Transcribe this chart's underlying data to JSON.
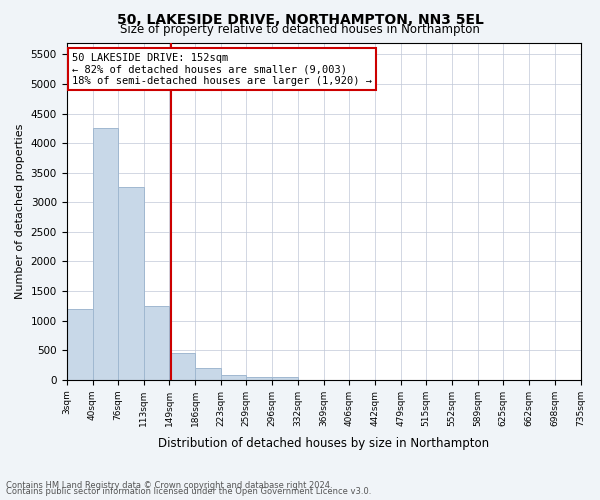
{
  "title1": "50, LAKESIDE DRIVE, NORTHAMPTON, NN3 5EL",
  "title2": "Size of property relative to detached houses in Northampton",
  "xlabel": "Distribution of detached houses by size in Northampton",
  "ylabel": "Number of detached properties",
  "bar_color": "#c8d8e8",
  "bar_edgecolor": "#a0b8d0",
  "vline_x": 152,
  "vline_color": "#cc0000",
  "annotation_title": "50 LAKESIDE DRIVE: 152sqm",
  "annotation_line1": "← 82% of detached houses are smaller (9,003)",
  "annotation_line2": "18% of semi-detached houses are larger (1,920) →",
  "annotation_box_color": "#cc0000",
  "bin_edges": [
    3,
    40,
    76,
    113,
    149,
    186,
    223,
    259,
    296,
    332,
    369,
    406,
    442,
    479,
    515,
    552,
    589,
    625,
    662,
    698,
    735
  ],
  "bar_heights": [
    1200,
    4250,
    3250,
    1250,
    450,
    200,
    75,
    50,
    50,
    0,
    0,
    0,
    0,
    0,
    0,
    0,
    0,
    0,
    0,
    0
  ],
  "ylim": [
    0,
    5700
  ],
  "yticks": [
    0,
    500,
    1000,
    1500,
    2000,
    2500,
    3000,
    3500,
    4000,
    4500,
    5000,
    5500
  ],
  "footer1": "Contains HM Land Registry data © Crown copyright and database right 2024.",
  "footer2": "Contains public sector information licensed under the Open Government Licence v3.0.",
  "background_color": "#f0f4f8",
  "plot_background": "#ffffff"
}
